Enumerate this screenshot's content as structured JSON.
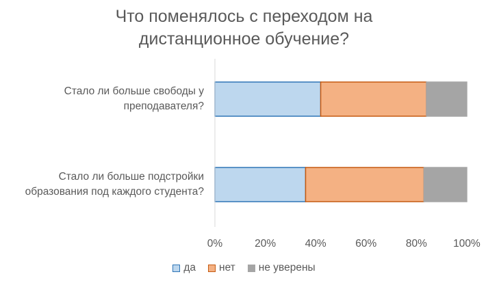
{
  "chart_data": {
    "type": "bar",
    "orientation": "horizontal",
    "stacked": true,
    "percent_stacked": true,
    "title_lines": [
      "Что поменялось с переходом на",
      "дистанционное обучение?"
    ],
    "categories": [
      {
        "lines": [
          "Стало ли больше свободы у",
          "преподавателя?"
        ]
      },
      {
        "lines": [
          "Стало ли больше подстройки",
          "образования под каждого студента?"
        ]
      }
    ],
    "series": [
      {
        "name": "да",
        "values": [
          42,
          36
        ],
        "color": "#BDD7EE",
        "stroke": "#2E75B6"
      },
      {
        "name": "нет",
        "values": [
          42,
          47
        ],
        "color": "#F4B183",
        "stroke": "#C55A11"
      },
      {
        "name": "не уверены",
        "values": [
          16,
          17
        ],
        "color": "#A5A5A5",
        "stroke": "#A5A5A5"
      }
    ],
    "x_ticks": [
      "0%",
      "20%",
      "40%",
      "60%",
      "80%",
      "100%"
    ],
    "xlim": [
      0,
      100
    ],
    "grid": false,
    "legend_position": "bottom"
  }
}
